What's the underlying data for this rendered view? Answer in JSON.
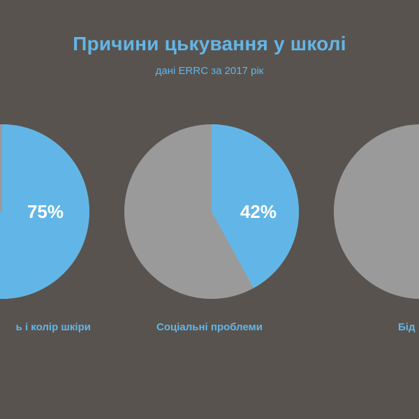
{
  "header": {
    "title": "Причини цькування у школі",
    "subtitle": "дані ERRC за 2017 рік"
  },
  "colors": {
    "background": "#58534f",
    "accent": "#62b6e7",
    "remainder": "#9a9a9a",
    "percent_text": "#ffffff"
  },
  "chart_data": [
    {
      "type": "pie",
      "label": "ь і колір шкіри",
      "value_text": "75%",
      "values": [
        75,
        25
      ]
    },
    {
      "type": "pie",
      "label": "Соціальні проблеми",
      "value_text": "42%",
      "values": [
        42,
        58
      ]
    },
    {
      "type": "pie",
      "label": "Бід",
      "value_text": "",
      "values": [
        0,
        100
      ]
    }
  ]
}
